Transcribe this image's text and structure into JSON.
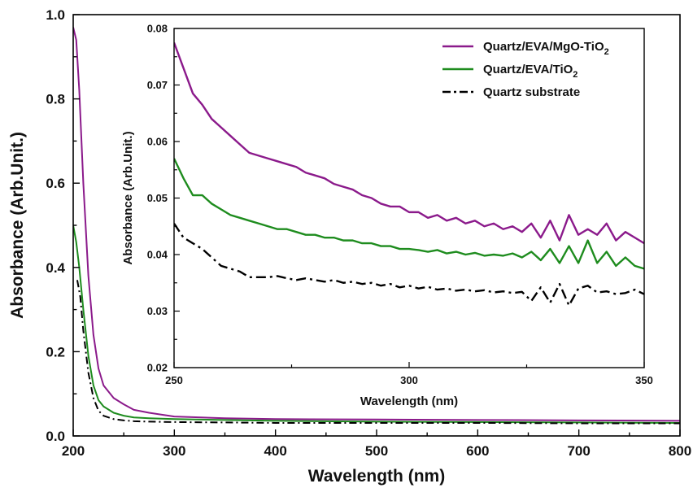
{
  "chart_data": [
    {
      "type": "line",
      "xlabel": "Wavelength (nm)",
      "ylabel": "Absorbance (Arb.Unit.)",
      "xlim": [
        200,
        800
      ],
      "ylim": [
        0.0,
        1.0
      ],
      "xticks": [
        "200",
        "300",
        "400",
        "500",
        "600",
        "700",
        "800"
      ],
      "yticks": [
        "0.0",
        "0.2",
        "0.4",
        "0.6",
        "0.8",
        "1.0"
      ],
      "grid": false,
      "series": [
        {
          "name": "Quartz/EVA/MgO-TiO2",
          "color": "#8B1A8B",
          "dash": "solid",
          "x": [
            200,
            203,
            206,
            210,
            215,
            220,
            225,
            230,
            240,
            250,
            260,
            275,
            300,
            350,
            400,
            500,
            600,
            700,
            800
          ],
          "y": [
            0.97,
            0.94,
            0.82,
            0.6,
            0.38,
            0.24,
            0.16,
            0.12,
            0.09,
            0.075,
            0.062,
            0.055,
            0.046,
            0.042,
            0.04,
            0.039,
            0.038,
            0.037,
            0.036
          ]
        },
        {
          "name": "Quartz/EVA/TiO2",
          "color": "#1E8C1E",
          "dash": "solid",
          "x": [
            200,
            203,
            206,
            210,
            215,
            220,
            225,
            230,
            240,
            250,
            260,
            275,
            300,
            350,
            400,
            500,
            600,
            700,
            800
          ],
          "y": [
            0.5,
            0.46,
            0.4,
            0.3,
            0.19,
            0.12,
            0.085,
            0.07,
            0.055,
            0.048,
            0.044,
            0.042,
            0.04,
            0.038,
            0.036,
            0.034,
            0.033,
            0.032,
            0.031
          ]
        },
        {
          "name": "Quartz substrate",
          "color": "#000000",
          "dash": "dashdot",
          "x": [
            204,
            207,
            210,
            215,
            220,
            225,
            230,
            240,
            250,
            260,
            275,
            300,
            350,
            400,
            500,
            600,
            700,
            800
          ],
          "y": [
            0.37,
            0.33,
            0.25,
            0.15,
            0.09,
            0.06,
            0.048,
            0.04,
            0.037,
            0.035,
            0.034,
            0.033,
            0.032,
            0.031,
            0.031,
            0.031,
            0.03,
            0.03
          ]
        }
      ]
    },
    {
      "type": "line",
      "xlabel": "Wavelength (nm)",
      "ylabel": "Absorbance (Arb.Unit.)",
      "xlim": [
        250,
        350
      ],
      "ylim": [
        0.02,
        0.08
      ],
      "xticks": [
        "250",
        "300",
        "350"
      ],
      "yticks": [
        "0.02",
        "0.03",
        "0.04",
        "0.05",
        "0.06",
        "0.07",
        "0.08"
      ],
      "legend_position": "top-right",
      "grid": false,
      "series": [
        {
          "name": "Quartz/EVA/MgO-TiO2",
          "legend_main": "Quartz/EVA/MgO-TiO",
          "legend_sub": "2",
          "color": "#8B1A8B",
          "dash": "solid",
          "x": [
            250,
            252,
            254,
            256,
            258,
            260,
            262,
            264,
            266,
            268,
            270,
            272,
            274,
            276,
            278,
            280,
            282,
            284,
            286,
            288,
            290,
            292,
            294,
            296,
            298,
            300,
            302,
            304,
            306,
            308,
            310,
            312,
            314,
            316,
            318,
            320,
            322,
            324,
            326,
            328,
            330,
            332,
            334,
            336,
            338,
            340,
            342,
            344,
            346,
            348,
            350
          ],
          "y": [
            0.0775,
            0.073,
            0.0685,
            0.0665,
            0.064,
            0.0625,
            0.061,
            0.0595,
            0.058,
            0.0575,
            0.057,
            0.0565,
            0.056,
            0.0555,
            0.0545,
            0.054,
            0.0535,
            0.0525,
            0.052,
            0.0515,
            0.0505,
            0.05,
            0.049,
            0.0485,
            0.0485,
            0.0475,
            0.0475,
            0.0465,
            0.047,
            0.046,
            0.0465,
            0.0455,
            0.046,
            0.045,
            0.0455,
            0.0445,
            0.045,
            0.044,
            0.0455,
            0.043,
            0.046,
            0.0425,
            0.047,
            0.0435,
            0.0445,
            0.0435,
            0.0455,
            0.0425,
            0.044,
            0.043,
            0.042
          ]
        },
        {
          "name": "Quartz/EVA/TiO2",
          "legend_main": "Quartz/EVA/TiO",
          "legend_sub": "2",
          "color": "#1E8C1E",
          "dash": "solid",
          "x": [
            250,
            252,
            254,
            256,
            258,
            260,
            262,
            264,
            266,
            268,
            270,
            272,
            274,
            276,
            278,
            280,
            282,
            284,
            286,
            288,
            290,
            292,
            294,
            296,
            298,
            300,
            302,
            304,
            306,
            308,
            310,
            312,
            314,
            316,
            318,
            320,
            322,
            324,
            326,
            328,
            330,
            332,
            334,
            336,
            338,
            340,
            342,
            344,
            346,
            348,
            350
          ],
          "y": [
            0.057,
            0.0535,
            0.0505,
            0.0505,
            0.049,
            0.048,
            0.047,
            0.0465,
            0.046,
            0.0455,
            0.045,
            0.0445,
            0.0445,
            0.044,
            0.0435,
            0.0435,
            0.043,
            0.043,
            0.0425,
            0.0425,
            0.042,
            0.042,
            0.0415,
            0.0415,
            0.041,
            0.041,
            0.0408,
            0.0405,
            0.0408,
            0.0402,
            0.0405,
            0.04,
            0.0403,
            0.0398,
            0.04,
            0.0398,
            0.0402,
            0.0395,
            0.0405,
            0.039,
            0.041,
            0.0385,
            0.0415,
            0.0385,
            0.0425,
            0.0385,
            0.0405,
            0.038,
            0.0395,
            0.038,
            0.0375
          ]
        },
        {
          "name": "Quartz substrate",
          "legend_main": "Quartz substrate",
          "legend_sub": "",
          "color": "#000000",
          "dash": "dashdot",
          "x": [
            250,
            252,
            254,
            256,
            258,
            260,
            262,
            264,
            266,
            268,
            270,
            272,
            274,
            276,
            278,
            280,
            282,
            284,
            286,
            288,
            290,
            292,
            294,
            296,
            298,
            300,
            302,
            304,
            306,
            308,
            310,
            312,
            314,
            316,
            318,
            320,
            322,
            324,
            326,
            328,
            330,
            332,
            334,
            336,
            338,
            340,
            342,
            344,
            346,
            348,
            350
          ],
          "y": [
            0.0455,
            0.043,
            0.042,
            0.041,
            0.0395,
            0.038,
            0.0375,
            0.037,
            0.036,
            0.036,
            0.036,
            0.0362,
            0.0358,
            0.0355,
            0.0358,
            0.0355,
            0.0352,
            0.0355,
            0.035,
            0.0352,
            0.0348,
            0.035,
            0.0345,
            0.0348,
            0.0342,
            0.0345,
            0.034,
            0.0343,
            0.0338,
            0.034,
            0.0336,
            0.0338,
            0.0335,
            0.0337,
            0.0333,
            0.0335,
            0.0332,
            0.0334,
            0.0318,
            0.0342,
            0.0315,
            0.0348,
            0.031,
            0.034,
            0.0345,
            0.0333,
            0.0335,
            0.033,
            0.0332,
            0.0338,
            0.033
          ]
        }
      ]
    }
  ]
}
